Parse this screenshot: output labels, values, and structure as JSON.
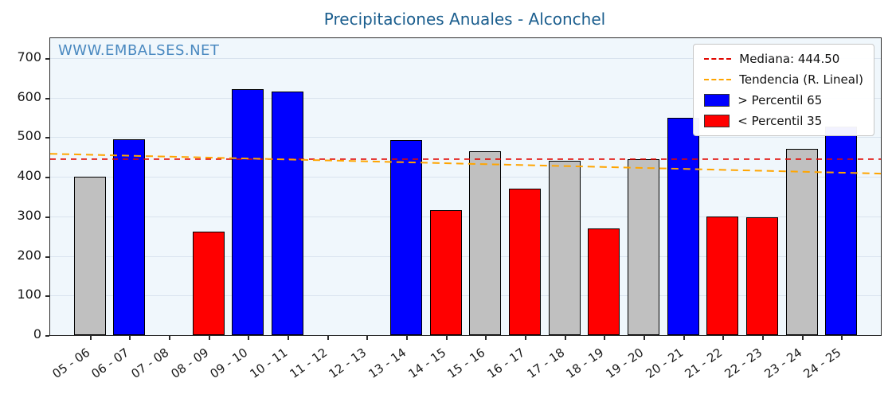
{
  "watermark": "WWW.EMBALSES.NET",
  "colors": {
    "title": "#1b5e8e",
    "watermark": "#4a89c0",
    "median": "#e10600",
    "trend": "#ffa500",
    "above": "#0000ff",
    "below": "#ff0000",
    "mid": "#c0c0c0",
    "plot_bg": "#f0f7fc",
    "grid": "#d9e3ee",
    "axis": "#2b2b2b"
  },
  "chart_data": {
    "type": "bar",
    "title": "Precipitaciones Anuales - Alconchel",
    "xlabel": "",
    "ylabel": "",
    "categories": [
      "05 - 06",
      "06 - 07",
      "07 - 08",
      "08 - 09",
      "09 - 10",
      "10 - 11",
      "11 - 12",
      "12 - 13",
      "13 - 14",
      "14 - 15",
      "15 - 16",
      "16 - 17",
      "17 - 18",
      "18 - 19",
      "19 - 20",
      "20 - 21",
      "21 - 22",
      "22 - 23",
      "23 - 24",
      "24 - 25"
    ],
    "values": [
      400,
      495,
      null,
      262,
      622,
      616,
      null,
      null,
      492,
      316,
      464,
      370,
      440,
      270,
      444,
      548,
      300,
      298,
      470,
      527
    ],
    "bands": [
      "mid",
      "above",
      null,
      "below",
      "above",
      "above",
      null,
      null,
      "above",
      "below",
      "mid",
      "below",
      "mid",
      "below",
      "mid",
      "above",
      "below",
      "below",
      "mid",
      "above"
    ],
    "ylim": [
      0,
      750
    ],
    "yticks": [
      0,
      100,
      200,
      300,
      400,
      500,
      600,
      700
    ],
    "median_value": 444.5,
    "trend_line": {
      "start": 458,
      "end": 408
    },
    "grid": true,
    "legend_position": "upper right",
    "legend": [
      {
        "label": "Mediana: 444.50",
        "type": "dashed-line",
        "color_key": "median"
      },
      {
        "label": "Tendencia (R. Lineal)",
        "type": "dashed-line",
        "color_key": "trend"
      },
      {
        "label": "> Percentil 65",
        "type": "patch",
        "color_key": "above"
      },
      {
        "label": "< Percentil 35",
        "type": "patch",
        "color_key": "below"
      }
    ]
  }
}
